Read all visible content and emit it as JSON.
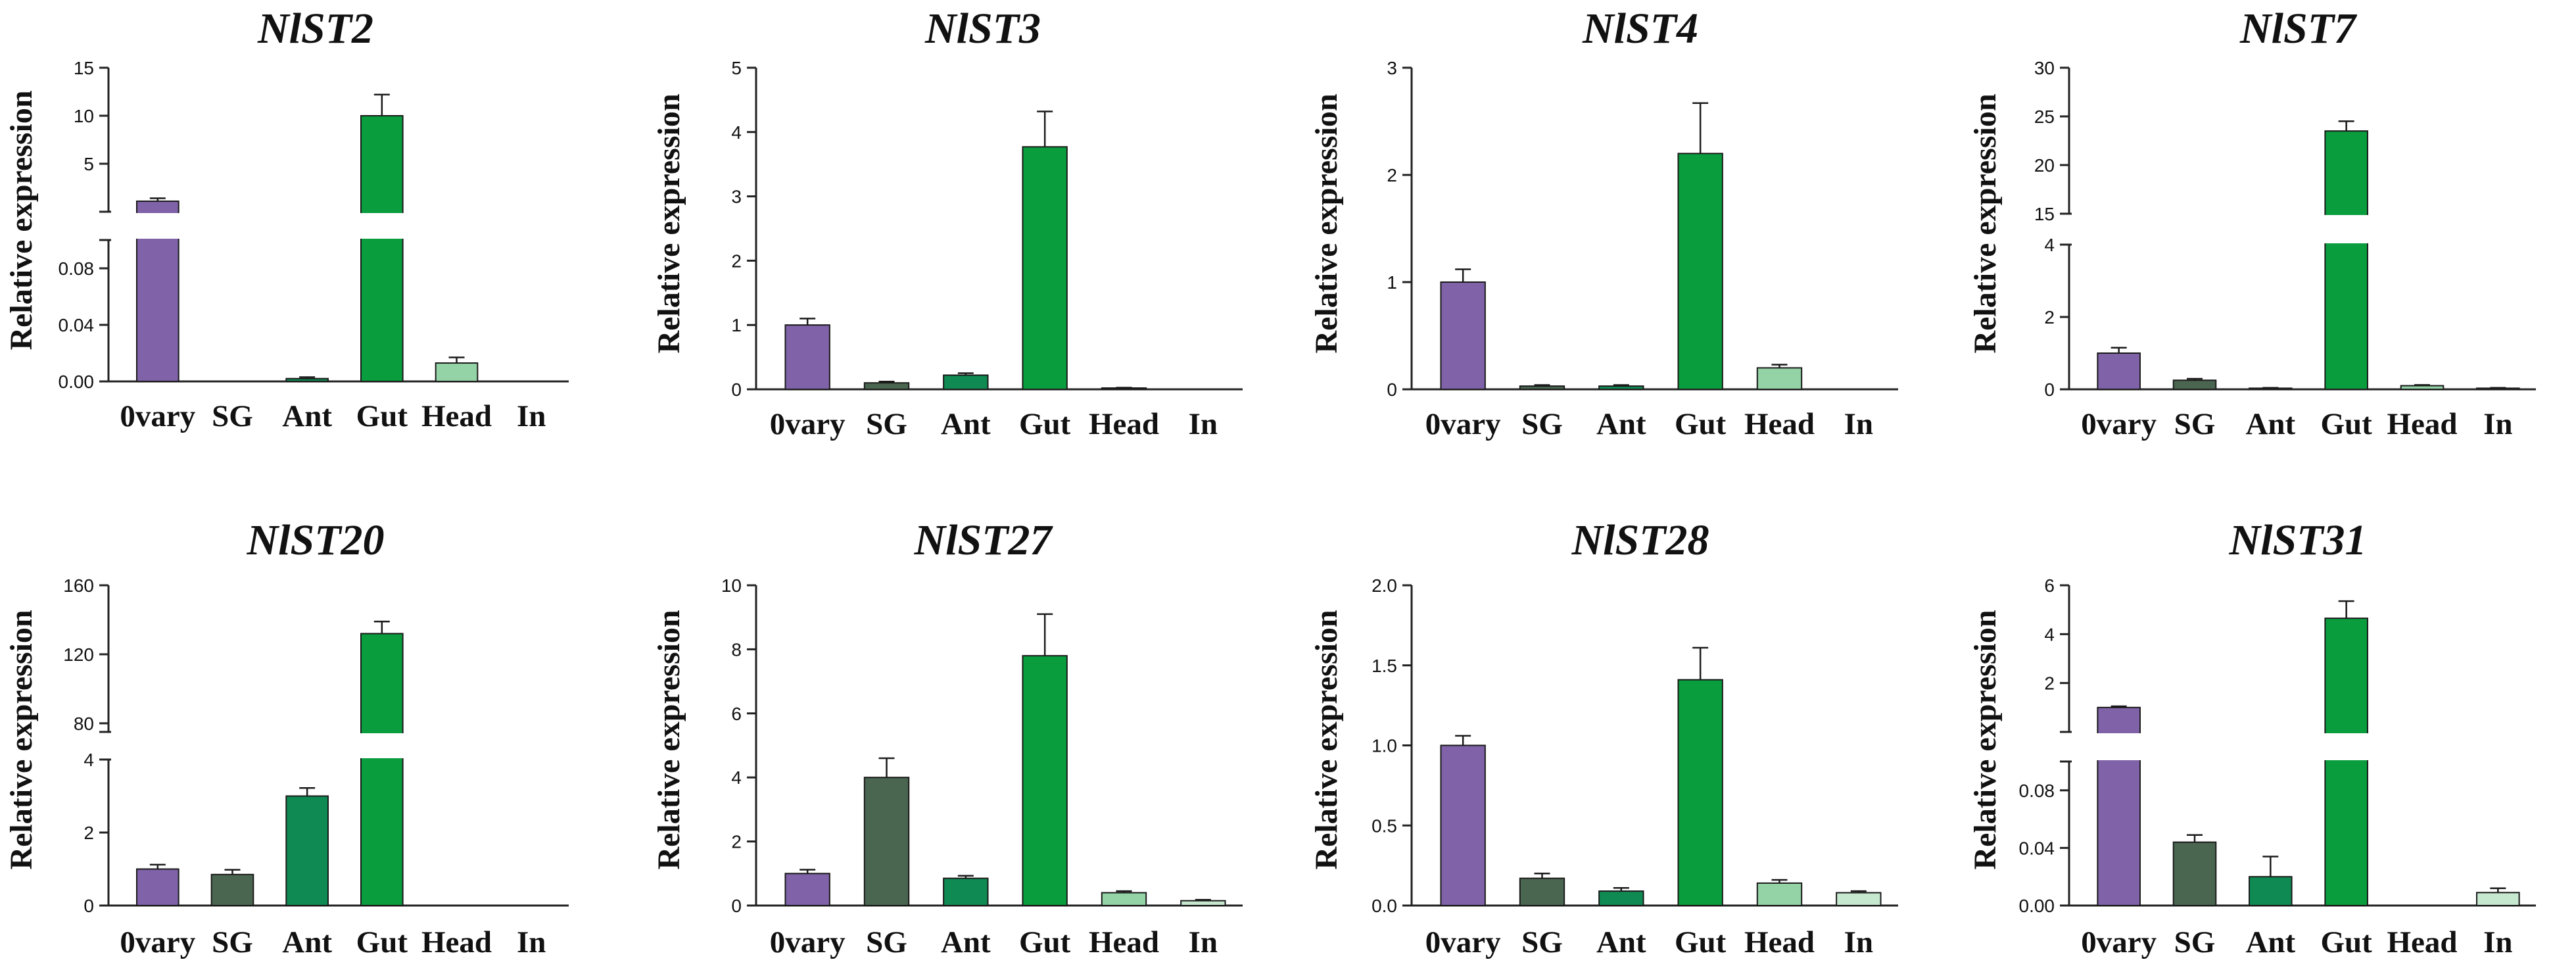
{
  "figure": {
    "ylabel": "Relative expression"
  },
  "colors": {
    "Ovary": "#7f62a8",
    "SG": "#4a6650",
    "Ant": "#0f8a52",
    "Gut": "#0a9d3e",
    "Head": "#94d3a6",
    "In": "#c6e8cf",
    "axis": "#222222",
    "gap": "#ffffff"
  },
  "chart_data": [
    {
      "type": "bar",
      "title": "NlST2",
      "ylabel": "Relative expression",
      "categories": [
        "0vary",
        "SG",
        "Ant",
        "Gut",
        "Head",
        "In"
      ],
      "color_keys": [
        "Ovary",
        "SG",
        "Ant",
        "Gut",
        "Head",
        "In"
      ],
      "values": [
        1.1,
        0,
        0.002,
        10,
        0.013,
        0
      ],
      "errors": [
        0.3,
        0,
        0.001,
        2.2,
        0.004,
        0
      ],
      "axis_break": {
        "lower": [
          0,
          0.1
        ],
        "upper": [
          0,
          15
        ]
      },
      "yticks_lower": [
        0,
        0.04,
        0.08
      ],
      "yticks_upper": [
        5,
        10,
        15
      ],
      "ytick_labels_lower": [
        "0.00",
        "0.04",
        "0.08"
      ],
      "ytick_labels_upper": [
        "5",
        "10",
        "15"
      ]
    },
    {
      "type": "bar",
      "title": "NlST3",
      "ylabel": "Relative expression",
      "categories": [
        "0vary",
        "SG",
        "Ant",
        "Gut",
        "Head",
        "In"
      ],
      "color_keys": [
        "Ovary",
        "SG",
        "Ant",
        "Gut",
        "Head",
        "In"
      ],
      "values": [
        1.0,
        0.1,
        0.22,
        3.77,
        0.02,
        0
      ],
      "errors": [
        0.1,
        0.02,
        0.03,
        0.55,
        0.005,
        0
      ],
      "ylim": [
        0,
        5
      ],
      "yticks": [
        0,
        1,
        2,
        3,
        4,
        5
      ],
      "ytick_labels": [
        "0",
        "1",
        "2",
        "3",
        "4",
        "5"
      ]
    },
    {
      "type": "bar",
      "title": "NlST4",
      "ylabel": "Relative expression",
      "categories": [
        "0vary",
        "SG",
        "Ant",
        "Gut",
        "Head",
        "In"
      ],
      "color_keys": [
        "Ovary",
        "SG",
        "Ant",
        "Gut",
        "Head",
        "In"
      ],
      "values": [
        1.0,
        0.03,
        0.03,
        2.2,
        0.2,
        0
      ],
      "errors": [
        0.12,
        0.01,
        0.01,
        0.47,
        0.03,
        0
      ],
      "ylim": [
        0,
        3
      ],
      "yticks": [
        0,
        1,
        2,
        3
      ],
      "ytick_labels": [
        "0",
        "1",
        "2",
        "3"
      ]
    },
    {
      "type": "bar",
      "title": "NlST7",
      "ylabel": "Relative expression",
      "categories": [
        "0vary",
        "SG",
        "Ant",
        "Gut",
        "Head",
        "In"
      ],
      "color_keys": [
        "Ovary",
        "SG",
        "Ant",
        "Gut",
        "Head",
        "In"
      ],
      "values": [
        1.0,
        0.25,
        0.03,
        23.5,
        0.1,
        0.03
      ],
      "errors": [
        0.15,
        0.04,
        0.01,
        1.0,
        0.02,
        0.01
      ],
      "axis_break": {
        "lower": [
          0,
          4
        ],
        "upper": [
          15,
          30
        ]
      },
      "yticks_lower": [
        0,
        2,
        4
      ],
      "yticks_upper": [
        15,
        20,
        25,
        30
      ],
      "ytick_labels_lower": [
        "0",
        "2",
        "4"
      ],
      "ytick_labels_upper": [
        "15",
        "20",
        "25",
        "30"
      ]
    },
    {
      "type": "bar",
      "title": "NlST20",
      "ylabel": "Relative expression",
      "categories": [
        "0vary",
        "SG",
        "Ant",
        "Gut",
        "Head",
        "In"
      ],
      "color_keys": [
        "Ovary",
        "SG",
        "Ant",
        "Gut",
        "Head",
        "In"
      ],
      "values": [
        1.0,
        0.85,
        3.0,
        132,
        0,
        0
      ],
      "errors": [
        0.12,
        0.13,
        0.22,
        7,
        0,
        0
      ],
      "axis_break": {
        "lower": [
          0,
          4
        ],
        "upper": [
          75,
          160
        ]
      },
      "yticks_lower": [
        0,
        2,
        4
      ],
      "yticks_upper": [
        80,
        120,
        160
      ],
      "ytick_labels_lower": [
        "0",
        "2",
        "4"
      ],
      "ytick_labels_upper": [
        "80",
        "120",
        "160"
      ]
    },
    {
      "type": "bar",
      "title": "NlST27",
      "ylabel": "Relative expression",
      "categories": [
        "0vary",
        "SG",
        "Ant",
        "Gut",
        "Head",
        "In"
      ],
      "color_keys": [
        "Ovary",
        "SG",
        "Ant",
        "Gut",
        "Head",
        "In"
      ],
      "values": [
        1.0,
        4.0,
        0.85,
        7.8,
        0.4,
        0.15
      ],
      "errors": [
        0.12,
        0.6,
        0.08,
        1.3,
        0.05,
        0.03
      ],
      "ylim": [
        0,
        10
      ],
      "yticks": [
        0,
        2,
        4,
        6,
        8,
        10
      ],
      "ytick_labels": [
        "0",
        "2",
        "4",
        "6",
        "8",
        "10"
      ]
    },
    {
      "type": "bar",
      "title": "NlST28",
      "ylabel": "Relative expression",
      "categories": [
        "0vary",
        "SG",
        "Ant",
        "Gut",
        "Head",
        "In"
      ],
      "color_keys": [
        "Ovary",
        "SG",
        "Ant",
        "Gut",
        "Head",
        "In"
      ],
      "values": [
        1.0,
        0.17,
        0.09,
        1.41,
        0.14,
        0.08
      ],
      "errors": [
        0.06,
        0.03,
        0.02,
        0.2,
        0.02,
        0.01
      ],
      "ylim": [
        0,
        2.0
      ],
      "yticks": [
        0,
        0.5,
        1.0,
        1.5,
        2.0
      ],
      "ytick_labels": [
        "0.0",
        "0.5",
        "1.0",
        "1.5",
        "2.0"
      ]
    },
    {
      "type": "bar",
      "title": "NlST31",
      "ylabel": "Relative expression",
      "categories": [
        "0vary",
        "SG",
        "Ant",
        "Gut",
        "Head",
        "In"
      ],
      "color_keys": [
        "Ovary",
        "SG",
        "Ant",
        "Gut",
        "Head",
        "In"
      ],
      "values": [
        1.0,
        0.044,
        0.02,
        4.65,
        0,
        0.009
      ],
      "errors": [
        0.05,
        0.005,
        0.014,
        0.7,
        0,
        0.003
      ],
      "axis_break": {
        "lower": [
          0,
          0.1
        ],
        "upper": [
          0,
          6
        ]
      },
      "yticks_lower": [
        0,
        0.04,
        0.08
      ],
      "yticks_upper": [
        2,
        4,
        6
      ],
      "ytick_labels_lower": [
        "0.00",
        "0.04",
        "0.08"
      ],
      "ytick_labels_upper": [
        "2",
        "4",
        "6"
      ]
    }
  ]
}
